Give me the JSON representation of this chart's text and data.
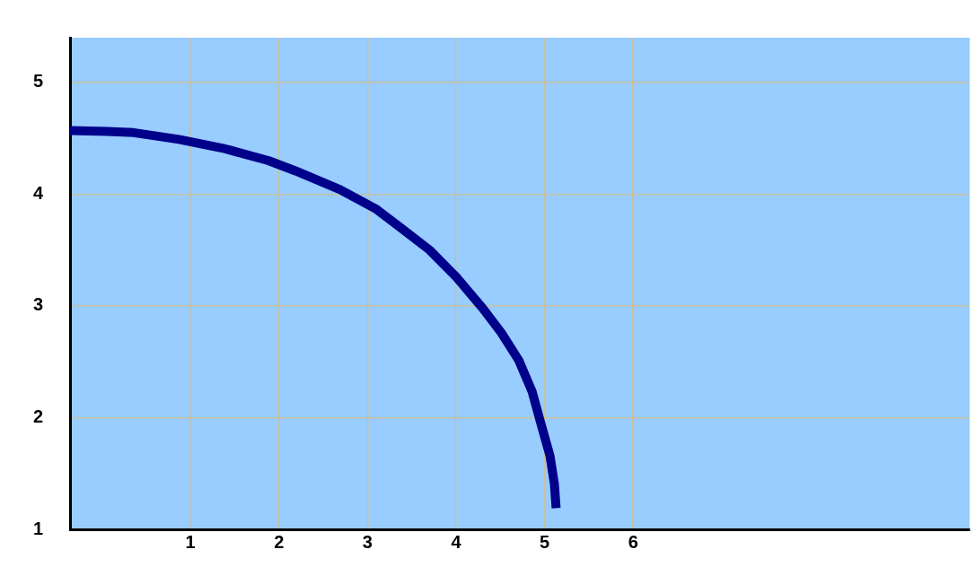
{
  "chart_data": {
    "type": "line",
    "x": [
      -0.36,
      0.06,
      0.36,
      0.87,
      1.37,
      1.88,
      2.18,
      2.69,
      3.09,
      3.39,
      3.7,
      4.0,
      4.3,
      4.51,
      4.71,
      4.86,
      4.96,
      5.06,
      5.11,
      5.13
    ],
    "series": [
      {
        "color": "#00008b",
        "values": [
          4.57,
          4.56,
          4.55,
          4.49,
          4.41,
          4.3,
          4.21,
          4.04,
          3.87,
          3.69,
          3.5,
          3.26,
          2.98,
          2.76,
          2.51,
          2.23,
          1.94,
          1.66,
          1.41,
          1.19
        ]
      }
    ],
    "xlim": [
      -0.36,
      9.8
    ],
    "xticks": [
      1,
      2,
      3,
      4,
      5,
      6
    ],
    "ylim": [
      1,
      5.4
    ],
    "yticks": [
      1,
      2,
      3,
      4,
      5
    ],
    "grid": true,
    "legend": false,
    "marker": "none",
    "line_style": "solid"
  }
}
